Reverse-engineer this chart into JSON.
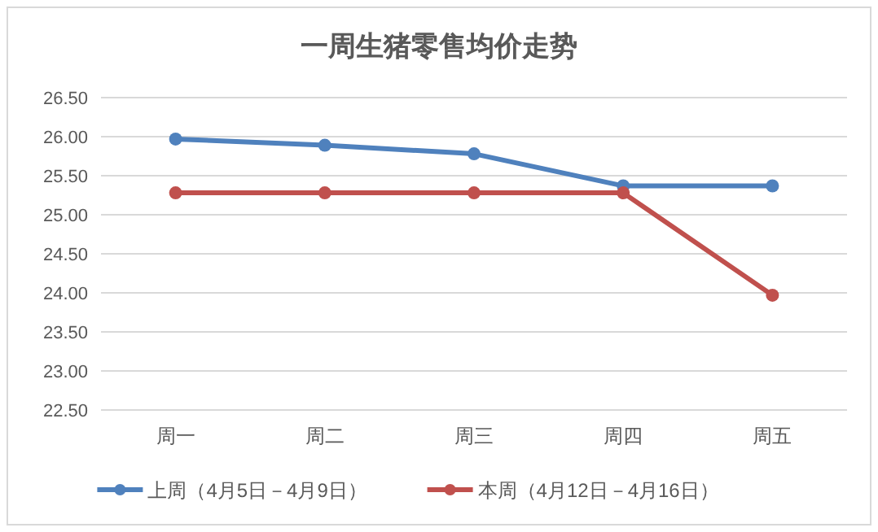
{
  "chart_data": {
    "type": "line",
    "title": "一周生猪零售均价走势",
    "categories": [
      "周一",
      "周二",
      "周三",
      "周四",
      "周五"
    ],
    "series": [
      {
        "name": "上周（4月5日－4月9日）",
        "color": "#4f81bd",
        "values": [
          25.97,
          25.89,
          25.78,
          25.37,
          25.37
        ]
      },
      {
        "name": "本周（4月12日－4月16日）",
        "color": "#c0504d",
        "values": [
          25.28,
          25.28,
          25.28,
          25.28,
          23.97
        ]
      }
    ],
    "ylim": [
      22.5,
      26.5
    ],
    "yticks": [
      {
        "value": 22.5,
        "label": "22.50"
      },
      {
        "value": 23,
        "label": "23.00"
      },
      {
        "value": 23.5,
        "label": "23.50"
      },
      {
        "value": 24,
        "label": "24.00"
      },
      {
        "value": 24.5,
        "label": "24.50"
      },
      {
        "value": 25,
        "label": "25.00"
      },
      {
        "value": 25.5,
        "label": "25.50"
      },
      {
        "value": 26,
        "label": "26.00"
      },
      {
        "value": 26.5,
        "label": "26.50"
      }
    ],
    "grid": "y",
    "legend": "bottom",
    "marker": "circle",
    "line_style": "solid"
  }
}
